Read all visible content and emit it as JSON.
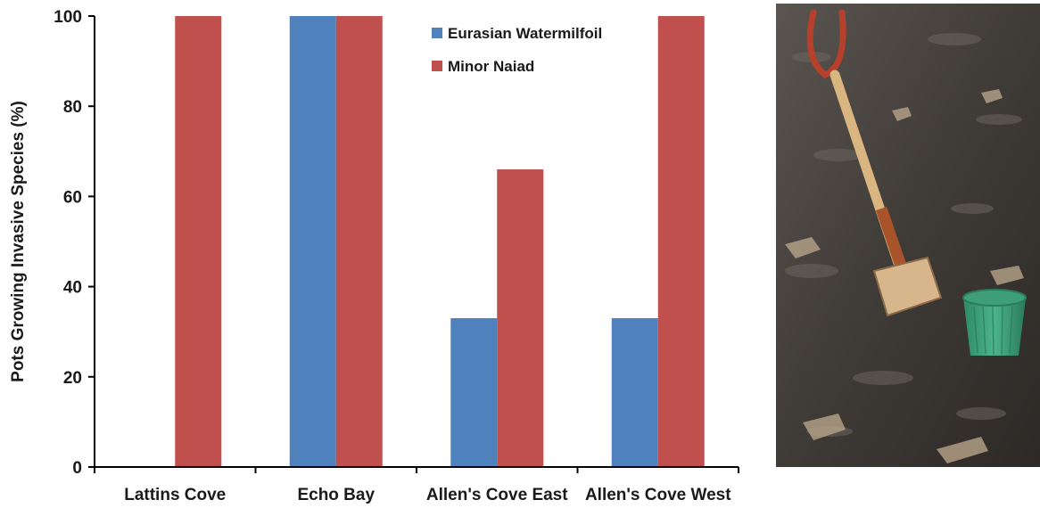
{
  "chart_data": {
    "type": "bar",
    "categories": [
      "Lattins Cove",
      "Echo Bay",
      "Allen's Cove East",
      "Allen's Cove West"
    ],
    "series": [
      {
        "name": "Eurasian Watermilfoil",
        "color": "#4f81bd",
        "values": [
          0,
          100,
          33,
          33
        ]
      },
      {
        "name": "Minor Naiad",
        "color": "#c0504d",
        "values": [
          100,
          100,
          66,
          100
        ]
      }
    ],
    "title": "",
    "xlabel": "",
    "ylabel": "Pots Growing Invasive Species (%)",
    "ylim": [
      0,
      100
    ],
    "yticks": [
      0,
      20,
      40,
      60,
      80,
      100
    ],
    "grid": false,
    "legend_position": "top-right"
  },
  "photo": {
    "icon": "shovel-and-green-pot-in-mud-photo"
  }
}
